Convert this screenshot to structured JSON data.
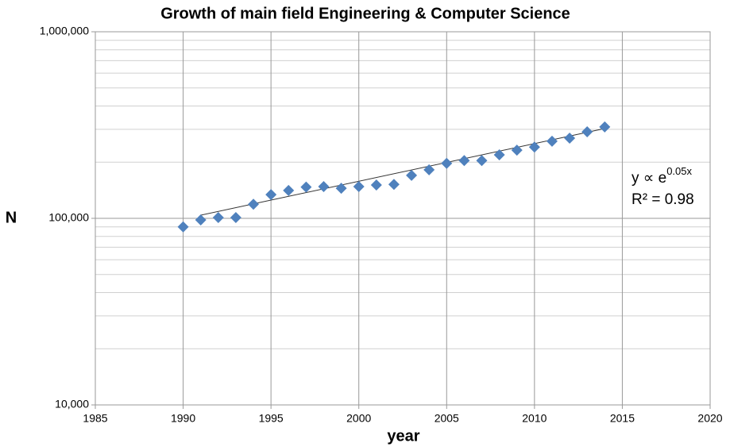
{
  "chart_data": {
    "type": "scatter",
    "title": "Growth of main field Engineering & Computer Science",
    "x_label": "year",
    "y_label": "N",
    "x": [
      1990,
      1991,
      1992,
      1993,
      1994,
      1995,
      1996,
      1997,
      1998,
      1999,
      2000,
      2001,
      2002,
      2003,
      2004,
      2005,
      2006,
      2007,
      2008,
      2009,
      2010,
      2011,
      2012,
      2013,
      2014
    ],
    "values": [
      90000,
      98000,
      101000,
      101000,
      119000,
      134000,
      141000,
      147000,
      148000,
      145000,
      148000,
      151000,
      152000,
      170000,
      182000,
      197000,
      204000,
      204000,
      219000,
      232000,
      241000,
      259000,
      269000,
      291000,
      309000
    ],
    "color": "#4f81bd",
    "trendline": {
      "x": [
        1991,
        2014
      ],
      "values": [
        104000,
        303000
      ],
      "color": "#333333"
    },
    "annotation": {
      "text": "y ∝ e",
      "superscript": "0.05x",
      "r2": "R² = 0.98"
    },
    "xlim": [
      1985,
      2020
    ],
    "xticks": [
      1985,
      1990,
      1995,
      2000,
      2005,
      2010,
      2015,
      2020
    ],
    "ylim": [
      10000,
      1000000
    ],
    "yticks": [
      {
        "value": 10000,
        "label": "10,000"
      },
      {
        "value": 100000,
        "label": "100,000"
      },
      {
        "value": 1000000,
        "label": "1,000,000"
      }
    ],
    "log_y": true,
    "grid": true,
    "minor_grid": true
  }
}
